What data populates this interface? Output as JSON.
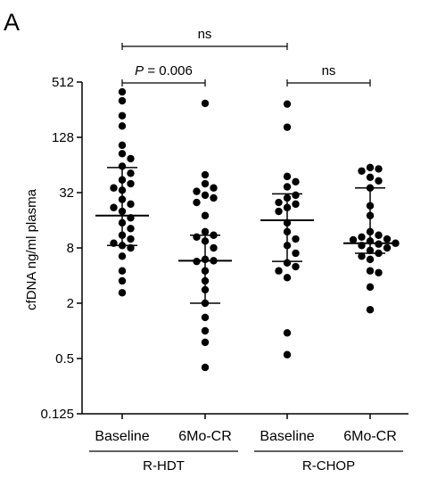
{
  "panel_label": "A",
  "chart_data": {
    "type": "scatter",
    "ylabel": "cfDNA ng/ml plasma",
    "y_scale": "log2",
    "ylim": [
      0.125,
      512
    ],
    "y_ticks": [
      {
        "value": 0.125,
        "label": "0.125"
      },
      {
        "value": 0.5,
        "label": "0.5"
      },
      {
        "value": 2,
        "label": "2"
      },
      {
        "value": 8,
        "label": "8"
      },
      {
        "value": 32,
        "label": "32"
      },
      {
        "value": 128,
        "label": "128"
      },
      {
        "value": 512,
        "label": "512"
      }
    ],
    "categories": [
      "Baseline",
      "6Mo-CR",
      "Baseline",
      "6Mo-CR"
    ],
    "groups": [
      {
        "label": "R-HDT",
        "categories": [
          0,
          1
        ]
      },
      {
        "label": "R-CHOP",
        "categories": [
          2,
          3
        ]
      }
    ],
    "series": [
      {
        "values": [
          400,
          320,
          220,
          170,
          105,
          85,
          75,
          62,
          52,
          44,
          40,
          36,
          34,
          27,
          24,
          22,
          20,
          17,
          15,
          13,
          11,
          10,
          9.0,
          8.5,
          8.0,
          6.5,
          4.5,
          3.5,
          2.6
        ],
        "mean": 18,
        "error_lower": 8.5,
        "error_upper": 60
      },
      {
        "values": [
          300,
          50,
          40,
          36,
          33,
          30,
          28,
          25,
          18,
          12,
          11,
          10.5,
          9.5,
          8.0,
          6.0,
          5.8,
          5.7,
          4.5,
          3.5,
          2.8,
          2.0,
          1.4,
          1.0,
          0.75,
          0.4
        ],
        "mean": 5.8,
        "error_lower": 2.0,
        "error_upper": 11
      },
      {
        "values": [
          295,
          165,
          48,
          42,
          37,
          30,
          28,
          25,
          24,
          22,
          20,
          15,
          12,
          10,
          8.5,
          7.0,
          5.5,
          5.0,
          4.5,
          3.8,
          0.95,
          0.55
        ],
        "mean": 16,
        "error_lower": 5.7,
        "error_upper": 31
      },
      {
        "values": [
          60,
          58,
          55,
          47,
          43,
          36,
          23,
          18,
          12,
          11,
          10.5,
          10,
          9.8,
          9.5,
          9.0,
          8.8,
          8.5,
          8.0,
          7.5,
          7.0,
          6.5,
          6.0,
          4.5,
          4.3,
          3.0,
          1.7
        ],
        "mean": 9,
        "error_lower": 7,
        "error_upper": 36
      }
    ],
    "comparisons": [
      {
        "from": 0,
        "to": 1,
        "label_prefix": "P",
        "label_rest": " = 0.006"
      },
      {
        "from": 2,
        "to": 3,
        "label_prefix": "",
        "label_rest": "ns"
      },
      {
        "from": 0,
        "to": 2,
        "label_prefix": "",
        "label_rest": "ns"
      }
    ]
  }
}
